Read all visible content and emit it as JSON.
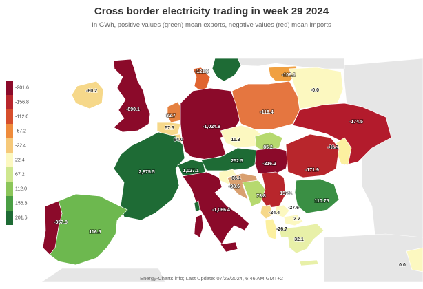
{
  "header": {
    "title": "Cross border electricity trading in week 29 2024",
    "subtitle": "In GWh, positive values (green) mean exports, negative values (red) mean imports"
  },
  "legend": {
    "ticks": [
      "-201.6",
      "-156.8",
      "-112.0",
      "-67.2",
      "-22.4",
      "22.4",
      "67.2",
      "112.0",
      "156.8",
      "201.6"
    ],
    "colors": [
      "#8b0a2a",
      "#b8262c",
      "#d64e2c",
      "#ef8c3c",
      "#f6c97a",
      "#fcf8c0",
      "#cfe78f",
      "#8cc65a",
      "#4a9e44",
      "#1e6b35"
    ]
  },
  "countries": [
    {
      "name": "ie",
      "value": "-60.2",
      "color": "#f6d88a"
    },
    {
      "name": "gb",
      "value": "-890.1",
      "color": "#8b0a2a"
    },
    {
      "name": "no",
      "value": "",
      "color": "#1e6b35"
    },
    {
      "name": "dk",
      "value": "-121.9",
      "color": "#e06430"
    },
    {
      "name": "lt",
      "value": "-106.1",
      "color": "#f0a040"
    },
    {
      "name": "pl",
      "value": "-119.4",
      "color": "#e57640"
    },
    {
      "name": "by",
      "value": "-0.0",
      "color": "#fcf8c0"
    },
    {
      "name": "ua",
      "value": "-174.5",
      "color": "#b31b2c"
    },
    {
      "name": "nl",
      "value": "82.7",
      "color": "#e58140"
    },
    {
      "name": "be",
      "value": "57.5",
      "color": "#f6d88a"
    },
    {
      "name": "lu",
      "value": "84.0",
      "color": "#f6d88a"
    },
    {
      "name": "de",
      "value": "-1,024.8",
      "color": "#8b0a2a"
    },
    {
      "name": "cz",
      "value": "11.3",
      "color": "#fcf8c0"
    },
    {
      "name": "sk",
      "value": "85.2",
      "color": "#b6d96f"
    },
    {
      "name": "md",
      "value": "-16.2",
      "color": "#fcf0a0"
    },
    {
      "name": "fr",
      "value": "2,875.5",
      "color": "#1e6b35"
    },
    {
      "name": "ch",
      "value": "1,027.1",
      "color": "#1e6b35"
    },
    {
      "name": "at",
      "value": "252.5",
      "color": "#1e6b35"
    },
    {
      "name": "hu",
      "value": "-216.2",
      "color": "#8b0a2a"
    },
    {
      "name": "ro",
      "value": "-171.9",
      "color": "#b8262c"
    },
    {
      "name": "si",
      "value": "66.1",
      "color": "#fcf8c0"
    },
    {
      "name": "hr",
      "value": "-98.6",
      "color": "#d9a070"
    },
    {
      "name": "ba",
      "value": "73.8",
      "color": "#b6d96f"
    },
    {
      "name": "rs",
      "value": "157.1",
      "color": "#b8262c"
    },
    {
      "name": "bg",
      "value": "110.75",
      "color": "#3a8f44"
    },
    {
      "name": "me",
      "value": "-24.4",
      "color": "#f6d88a"
    },
    {
      "name": "xk",
      "value": "-27.6",
      "color": "#fcf8c0"
    },
    {
      "name": "mk",
      "value": "2.2",
      "color": "#fcf8c0"
    },
    {
      "name": "al",
      "value": "-26.7",
      "color": "#fcf0a0"
    },
    {
      "name": "gr",
      "value": "32.1",
      "color": "#e8f0a8"
    },
    {
      "name": "it",
      "value": "-1,066.4",
      "color": "#8b0a2a"
    },
    {
      "name": "es",
      "value": "116.5",
      "color": "#6db84f"
    },
    {
      "name": "pt",
      "value": "-357.8",
      "color": "#8b0a2a"
    },
    {
      "name": "tr",
      "value": "0.0",
      "color": "#fcf8c0"
    }
  ],
  "footer": "Energy-Charts.info; Last Update: 07/23/2024, 6:46 AM GMT+2"
}
